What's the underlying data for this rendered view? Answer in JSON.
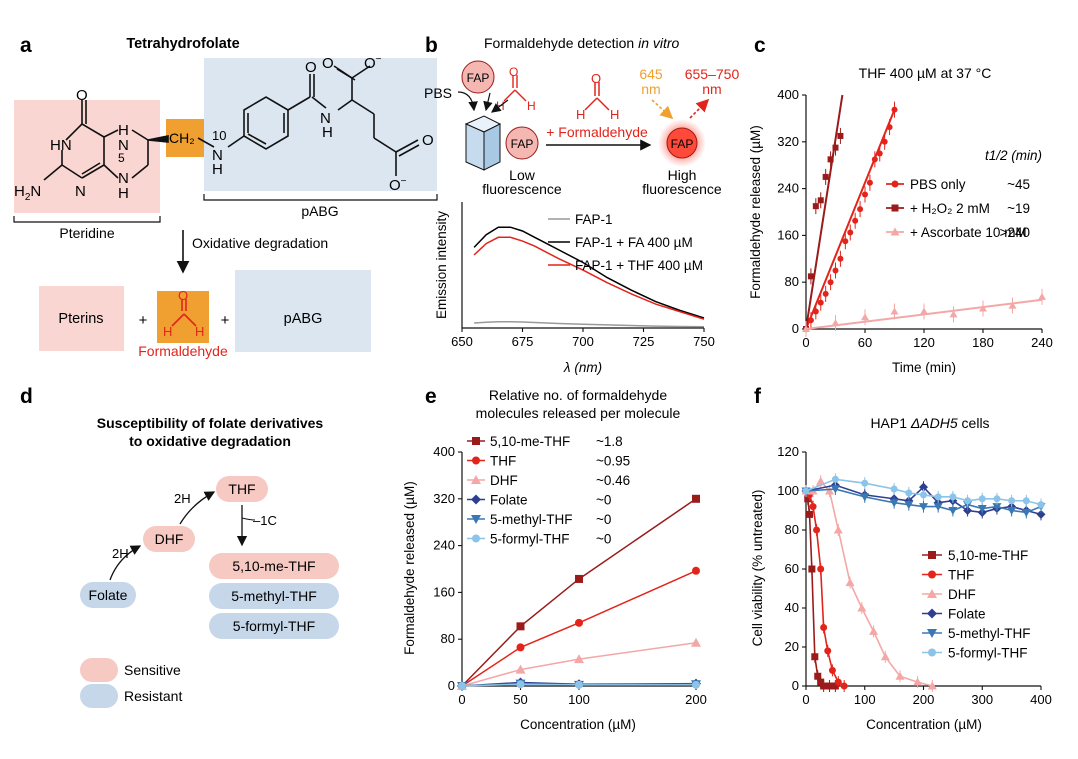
{
  "panel_a": {
    "label": "a",
    "title": "Tetrahydrofolate",
    "pteridine_label": "Pteridine",
    "pabg_label": "pABG",
    "ch2_label": "CH₂",
    "pos5": "5",
    "pos10": "10",
    "arrow_label": "Oxidative degradation",
    "products": {
      "pterins": "Pterins",
      "plus": "+",
      "formaldehyde": "Formaldehyde",
      "pabg": "pABG"
    }
  },
  "panel_b": {
    "label": "b",
    "title_plain": "Formaldehyde detection ",
    "title_italic": "in vitro",
    "pbs": "PBS",
    "fap": "FAP",
    "reagent": "+ Formaldehyde",
    "wl_ex": "645",
    "wl_ex_unit": "nm",
    "wl_em": "655–750",
    "wl_em_unit": "nm",
    "low_1": "Low",
    "low_2": "fluorescence",
    "high_1": "High",
    "high_2": "fluorescence",
    "colors": {
      "fap1": "#999999",
      "fa": "#000000",
      "thf": "#e3241b",
      "probe": "#f4b7b2"
    }
  },
  "panel_c": {
    "label": "c"
  },
  "panel_d": {
    "label": "d",
    "title_1": "Susceptibility of folate derivatives",
    "title_2": "to oxidative degradation",
    "nodes": {
      "folate": "Folate",
      "dhf": "DHF",
      "thf": "THF",
      "me": "5,10-me-THF",
      "methyl": "5-methyl-THF",
      "formyl": "5-formyl-THF"
    },
    "step_2h_a": "2H",
    "step_2h_b": "2H",
    "step_1c": "–1C",
    "legend_sensitive": "Sensitive",
    "legend_resistant": "Resistant",
    "colors": {
      "sensitive": "#f6c9c3",
      "resistant": "#c6d7ea"
    }
  },
  "panel_e": {
    "label": "e",
    "header_1": "Relative no. of formaldehyde",
    "header_2": "molecules released per molecule"
  },
  "panel_f": {
    "label": "f"
  },
  "chart_data": [
    {
      "panel": "b",
      "type": "line",
      "xlabel": "λ (nm)",
      "ylabel": "Emission intensity",
      "xlim": [
        650,
        750
      ],
      "xticks": [
        "650",
        "675",
        "700",
        "725",
        "750"
      ],
      "series": [
        {
          "name": "FAP-1",
          "color": "#999999",
          "x": [
            655,
            660,
            665,
            670,
            675,
            680,
            690,
            700,
            710,
            720,
            730,
            740,
            750
          ],
          "y": [
            4,
            4.6,
            5,
            5,
            4.8,
            4.4,
            3.6,
            3,
            2.5,
            2,
            1.5,
            1.2,
            1
          ]
        },
        {
          "name": "FAP-1 + FA 400 µM",
          "color": "#000000",
          "x": [
            655,
            660,
            665,
            670,
            675,
            680,
            685,
            690,
            700,
            710,
            720,
            730,
            740,
            750
          ],
          "y": [
            64,
            74,
            80,
            80,
            77,
            72,
            67,
            62,
            52,
            40,
            30,
            21,
            14,
            8
          ]
        },
        {
          "name": "FAP-1 + THF 400 µM",
          "color": "#e3241b",
          "x": [
            655,
            660,
            665,
            670,
            675,
            680,
            685,
            690,
            700,
            710,
            720,
            730,
            740,
            750
          ],
          "y": [
            58,
            67,
            72,
            72,
            69,
            65,
            60,
            55,
            46,
            36,
            27,
            19,
            13,
            7
          ]
        }
      ]
    },
    {
      "panel": "c",
      "type": "scatter",
      "title": "THF 400 µM at 37 °C",
      "xlabel": "Time (min)",
      "ylabel": "Formaldehyde released (µM)",
      "xlim": [
        0,
        240
      ],
      "ylim": [
        0,
        400
      ],
      "xticks": [
        "0",
        "60",
        "120",
        "180",
        "240"
      ],
      "yticks": [
        "0",
        "80",
        "160",
        "240",
        "320",
        "400"
      ],
      "legend_header": "t1/2 (min)",
      "series": [
        {
          "name": "PBS only",
          "t_half": "~45",
          "color": "#e3241b",
          "marker": "circle",
          "x": [
            0,
            5,
            10,
            15,
            20,
            25,
            30,
            35,
            40,
            45,
            50,
            55,
            60,
            65,
            70,
            75,
            80,
            85,
            90
          ],
          "y": [
            0,
            15,
            30,
            45,
            60,
            80,
            100,
            120,
            150,
            165,
            185,
            205,
            230,
            250,
            290,
            300,
            320,
            345,
            375
          ],
          "fit": [
            [
              0,
              0
            ],
            [
              90,
              375
            ]
          ]
        },
        {
          "name": "+ H₂O₂ 2 mM",
          "t_half": "~19",
          "color": "#9b1b1b",
          "marker": "square",
          "x": [
            0,
            5,
            10,
            15,
            20,
            25,
            30,
            35
          ],
          "y": [
            0,
            90,
            210,
            220,
            260,
            290,
            310,
            330
          ],
          "fit": [
            [
              0,
              0
            ],
            [
              37,
              400
            ]
          ]
        },
        {
          "name": "+ Ascorbate 10 mM",
          "t_half": ">240",
          "color": "#f4a7a7",
          "marker": "triangle",
          "x": [
            0,
            30,
            60,
            90,
            120,
            150,
            180,
            210,
            240
          ],
          "y": [
            0,
            10,
            20,
            30,
            30,
            25,
            35,
            40,
            55
          ],
          "fit": [
            [
              0,
              0
            ],
            [
              240,
              50
            ]
          ]
        }
      ]
    },
    {
      "panel": "e",
      "type": "line",
      "xlabel": "Concentration (µM)",
      "ylabel": "Formaldehyde released (µM)",
      "xlim": [
        0,
        200
      ],
      "ylim": [
        0,
        400
      ],
      "xticks": [
        "0",
        "50",
        "100",
        "200"
      ],
      "yticks": [
        "0",
        "80",
        "160",
        "240",
        "320",
        "400"
      ],
      "x": [
        0,
        50,
        100,
        200
      ],
      "series": [
        {
          "name": "5,10-me-THF",
          "ratio": "~1.8",
          "color": "#9b1b1b",
          "marker": "square",
          "values": [
            0,
            102,
            183,
            320
          ]
        },
        {
          "name": "THF",
          "ratio": "~0.95",
          "color": "#e3241b",
          "marker": "circle",
          "values": [
            0,
            66,
            108,
            197
          ]
        },
        {
          "name": "DHF",
          "ratio": "~0.46",
          "color": "#f4a7a7",
          "marker": "triangle",
          "values": [
            0,
            28,
            46,
            74
          ]
        },
        {
          "name": "Folate",
          "ratio": "~0",
          "color": "#2e3f8f",
          "marker": "diamond",
          "values": [
            0,
            6,
            3,
            4
          ]
        },
        {
          "name": "5-methyl-THF",
          "ratio": "~0",
          "color": "#3a78b5",
          "marker": "triangle-down",
          "values": [
            0,
            4,
            2,
            3
          ]
        },
        {
          "name": "5-formyl-THF",
          "ratio": "~0",
          "color": "#8cc3e8",
          "marker": "circle",
          "values": [
            0,
            3,
            2,
            2
          ]
        }
      ]
    },
    {
      "panel": "f",
      "type": "line",
      "title_pre": "HAP1 ",
      "title_italic": "ΔADH5",
      "title_post": " cells",
      "xlabel": "Concentration (µM)",
      "ylabel": "Cell viability (% untreated)",
      "xlim": [
        0,
        400
      ],
      "ylim": [
        0,
        120
      ],
      "xticks": [
        "0",
        "100",
        "200",
        "300",
        "400"
      ],
      "yticks": [
        "0",
        "20",
        "40",
        "60",
        "80",
        "100",
        "120"
      ],
      "series": [
        {
          "name": "5,10-me-THF",
          "color": "#9b1b1b",
          "marker": "square",
          "x": [
            0,
            3,
            6,
            10,
            15,
            20,
            25,
            30,
            40,
            50
          ],
          "y": [
            100,
            96,
            88,
            60,
            15,
            5,
            2,
            0,
            0,
            0
          ]
        },
        {
          "name": "THF",
          "color": "#e3241b",
          "marker": "circle",
          "x": [
            0,
            6,
            12,
            18,
            25,
            30,
            37,
            45,
            55,
            65
          ],
          "y": [
            100,
            98,
            92,
            80,
            60,
            30,
            18,
            8,
            2,
            0
          ]
        },
        {
          "name": "DHF",
          "color": "#f4a7a7",
          "marker": "triangle",
          "x": [
            0,
            12,
            25,
            40,
            55,
            75,
            95,
            115,
            135,
            160,
            190,
            215
          ],
          "y": [
            100,
            100,
            105,
            100,
            80,
            53,
            40,
            28,
            15,
            5,
            2,
            0
          ]
        },
        {
          "name": "Folate",
          "color": "#2e3f8f",
          "marker": "diamond",
          "x": [
            0,
            50,
            100,
            150,
            175,
            200,
            225,
            250,
            275,
            300,
            325,
            350,
            375,
            400
          ],
          "y": [
            100,
            103,
            98,
            96,
            95,
            102,
            94,
            95,
            90,
            89,
            91,
            92,
            90,
            88
          ]
        },
        {
          "name": "5-methyl-THF",
          "color": "#3a78b5",
          "marker": "triangle-down",
          "x": [
            0,
            50,
            100,
            150,
            175,
            200,
            225,
            250,
            275,
            300,
            325,
            350,
            375,
            400
          ],
          "y": [
            100,
            101,
            97,
            94,
            93,
            92,
            92,
            90,
            93,
            91,
            92,
            90,
            89,
            92
          ]
        },
        {
          "name": "5-formyl-THF",
          "color": "#8cc3e8",
          "marker": "circle",
          "x": [
            0,
            50,
            100,
            150,
            175,
            200,
            225,
            250,
            275,
            300,
            325,
            350,
            375,
            400
          ],
          "y": [
            100,
            106,
            104,
            101,
            99,
            98,
            97,
            97,
            95,
            96,
            96,
            95,
            95,
            93
          ]
        }
      ]
    }
  ]
}
